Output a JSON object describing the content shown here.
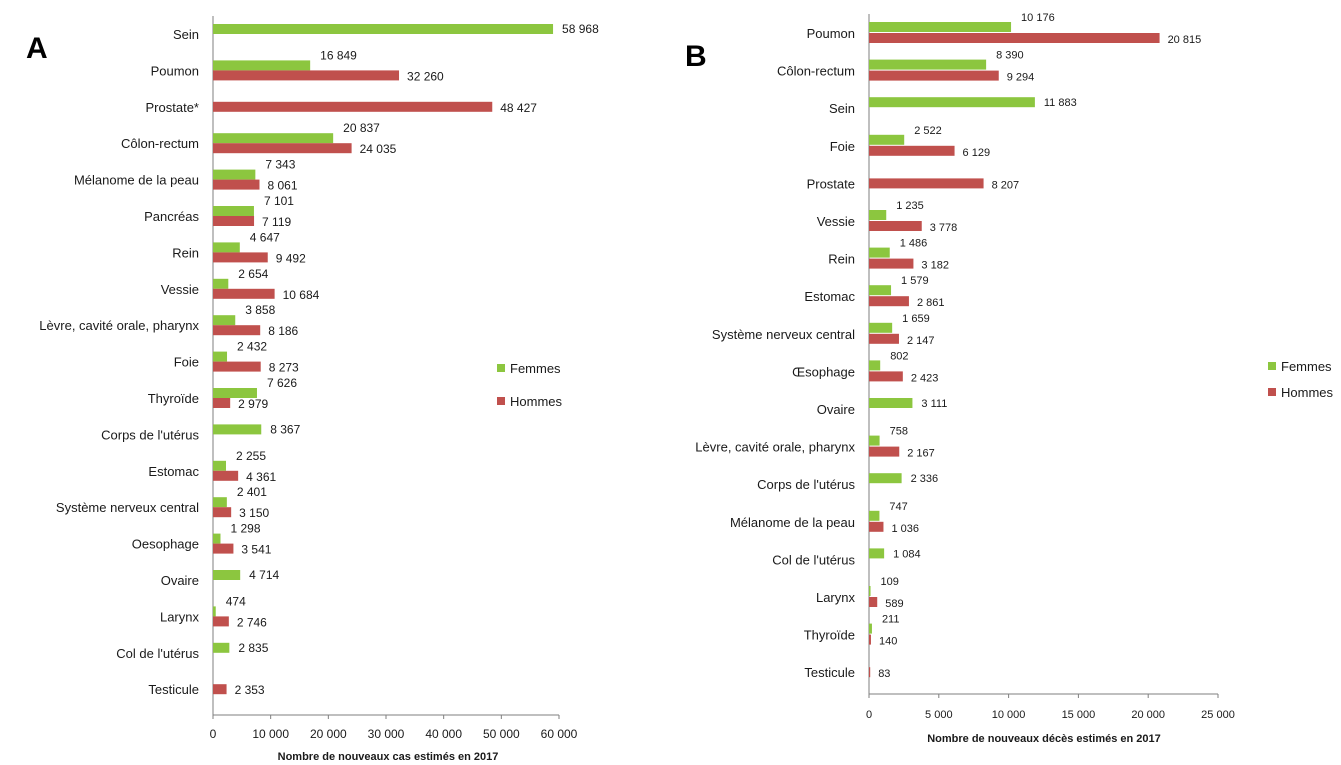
{
  "colors": {
    "femmes": "#8cc63f",
    "hommes": "#c0504d",
    "axis": "#7f7f7f"
  },
  "chart_data": [
    {
      "panel": "A",
      "type": "bar",
      "orientation": "horizontal",
      "categories": [
        "Sein",
        "Poumon",
        "Prostate*",
        "Côlon-rectum",
        "Mélanome de la peau",
        "Pancréas",
        "Rein",
        "Vessie",
        "Lèvre, cavité orale, pharynx",
        "Foie",
        "Thyroïde",
        "Corps de l'utérus",
        "Estomac",
        "Système nerveux central",
        "Oesophage",
        "Ovaire",
        "Larynx",
        "Col de l'utérus",
        "Testicule"
      ],
      "series": [
        {
          "name": "Femmes",
          "values": [
            58968,
            16849,
            null,
            20837,
            7343,
            7101,
            4647,
            2654,
            3858,
            2432,
            7626,
            8367,
            2255,
            2401,
            1298,
            4714,
            474,
            2835,
            null
          ]
        },
        {
          "name": "Hommes",
          "values": [
            null,
            32260,
            48427,
            24035,
            8061,
            7119,
            9492,
            10684,
            8186,
            8273,
            2979,
            null,
            4361,
            3150,
            3541,
            null,
            2746,
            null,
            2353
          ]
        }
      ],
      "data_labels": {
        "femmes": [
          "58 968",
          "16 849",
          null,
          "20 837",
          "7 343",
          "7 101",
          "4 647",
          "2 654",
          "3 858",
          "2 432",
          "7 626",
          "8 367",
          "2 255",
          "2 401",
          "1 298",
          "4 714",
          "474",
          "2 835",
          null
        ],
        "hommes": [
          null,
          "32 260",
          "48 427",
          "24 035",
          "8 061",
          "7 119",
          "9 492",
          "10 684",
          "8 186",
          "8 273",
          "2 979",
          null,
          "4 361",
          "3 150",
          "3 541",
          null,
          "2 746",
          null,
          "2 353"
        ]
      },
      "xlabel": "Nombre de nouveaux cas estimés en 2017",
      "xlim": [
        0,
        60000
      ],
      "xticks": [
        0,
        10000,
        20000,
        30000,
        40000,
        50000,
        60000
      ],
      "xtick_labels": [
        "0",
        "10 000",
        "20 000",
        "30 000",
        "40 000",
        "50 000",
        "60 000"
      ],
      "legend": [
        "Femmes",
        "Hommes"
      ],
      "legend_position": "right",
      "grid": false
    },
    {
      "panel": "B",
      "type": "bar",
      "orientation": "horizontal",
      "categories": [
        "Poumon",
        "Côlon-rectum",
        "Sein",
        "Foie",
        "Prostate",
        "Vessie",
        "Rein",
        "Estomac",
        "Système nerveux central",
        "Œsophage",
        "Ovaire",
        "Lèvre, cavité orale, pharynx",
        "Corps de l'utérus",
        "Mélanome de la peau",
        "Col de l'utérus",
        "Larynx",
        "Thyroïde",
        "Testicule"
      ],
      "series": [
        {
          "name": "Femmes",
          "values": [
            10176,
            8390,
            11883,
            2522,
            null,
            1235,
            1486,
            1579,
            1659,
            802,
            3111,
            758,
            2336,
            747,
            1084,
            109,
            211,
            null
          ]
        },
        {
          "name": "Hommes",
          "values": [
            20815,
            9294,
            null,
            6129,
            8207,
            3778,
            3182,
            2861,
            2147,
            2423,
            null,
            2167,
            null,
            1036,
            null,
            589,
            140,
            83
          ]
        }
      ],
      "data_labels": {
        "femmes": [
          "10 176",
          "8 390",
          "11 883",
          "2 522",
          null,
          "1 235",
          "1 486",
          "1 579",
          "1 659",
          "802",
          "3 111",
          "758",
          "2 336",
          "747",
          "1 084",
          "109",
          "211",
          null
        ],
        "hommes": [
          "20 815",
          "9 294",
          null,
          "6 129",
          "8 207",
          "3 778",
          "3 182",
          "2 861",
          "2 147",
          "2 423",
          null,
          "2 167",
          null,
          "1 036",
          null,
          "589",
          "140",
          "83"
        ]
      },
      "xlabel": "Nombre de nouveaux décès estimés en 2017",
      "xlim": [
        0,
        25000
      ],
      "xticks": [
        0,
        5000,
        10000,
        15000,
        20000,
        25000
      ],
      "xtick_labels": [
        "0",
        "5 000",
        "10 000",
        "15 000",
        "20 000",
        "25 000"
      ],
      "legend": [
        "Femmes",
        "Hommes"
      ],
      "legend_position": "right",
      "grid": false
    }
  ]
}
